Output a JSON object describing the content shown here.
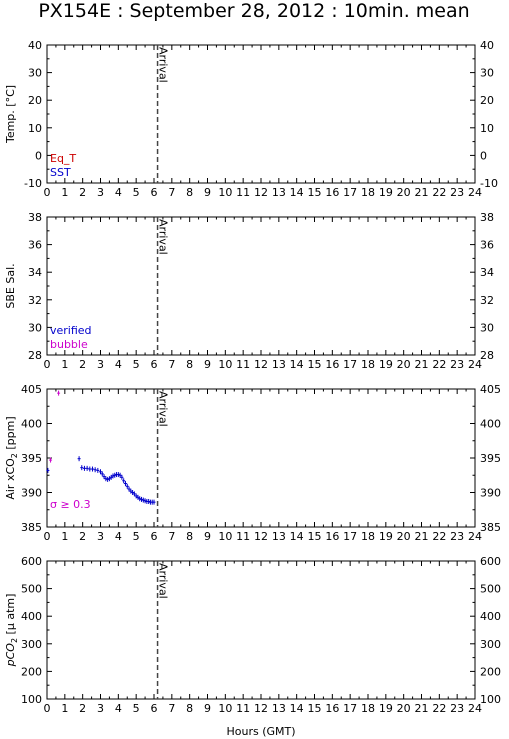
{
  "title": "PX154E : September 28, 2012 : 10min. mean",
  "xlabel": "Hours (GMT)",
  "colors": {
    "eq_t": "#cc0000",
    "sst": "#0000cc",
    "verified": "#0000cc",
    "bubble": "#cc00cc",
    "sigma": "#cc00cc",
    "arrival_line": "#444444"
  },
  "chart_data": [
    {
      "type": "scatter",
      "ylabel": "Temp. [°C]",
      "xlim": [
        0,
        24
      ],
      "ylim": [
        -10,
        40
      ],
      "yticks": [
        -10,
        0,
        10,
        20,
        30,
        40
      ],
      "xticks": [
        0,
        1,
        2,
        3,
        4,
        5,
        6,
        7,
        8,
        9,
        10,
        11,
        12,
        13,
        14,
        15,
        16,
        17,
        18,
        19,
        20,
        21,
        22,
        23,
        24
      ],
      "annotation": {
        "text": "Arrival",
        "x": 6.2
      },
      "legend": [
        {
          "name": "Eq_T",
          "color": "#cc0000"
        },
        {
          "name": "SST",
          "color": "#0000cc"
        }
      ],
      "series": []
    },
    {
      "type": "scatter",
      "ylabel": "SBE Sal.",
      "xlim": [
        0,
        24
      ],
      "ylim": [
        28,
        38
      ],
      "yticks": [
        28,
        30,
        32,
        34,
        36,
        38
      ],
      "xticks": [
        0,
        1,
        2,
        3,
        4,
        5,
        6,
        7,
        8,
        9,
        10,
        11,
        12,
        13,
        14,
        15,
        16,
        17,
        18,
        19,
        20,
        21,
        22,
        23,
        24
      ],
      "annotation": {
        "text": "Arrival",
        "x": 6.2
      },
      "legend": [
        {
          "name": "verified",
          "color": "#0000cc"
        },
        {
          "name": "bubble",
          "color": "#cc00cc"
        }
      ],
      "series": []
    },
    {
      "type": "scatter",
      "ylabel_main": "Air xCO",
      "ylabel_sub": "2",
      "ylabel_unit": " [ppm]",
      "xlim": [
        0,
        24
      ],
      "ylim": [
        385,
        405
      ],
      "yticks": [
        385,
        390,
        395,
        400,
        405
      ],
      "xticks": [
        0,
        1,
        2,
        3,
        4,
        5,
        6,
        7,
        8,
        9,
        10,
        11,
        12,
        13,
        14,
        15,
        16,
        17,
        18,
        19,
        20,
        21,
        22,
        23,
        24
      ],
      "annotation": {
        "text": "Arrival",
        "x": 6.2
      },
      "sigma_label": "σ ≥ 0.3",
      "series": [
        {
          "color": "#0000cc",
          "x": [
            0.05,
            1.8,
            1.95,
            2.1,
            2.25,
            2.4,
            2.55,
            2.7,
            2.85,
            3.0,
            3.1,
            3.2,
            3.3,
            3.4,
            3.5,
            3.6,
            3.7,
            3.8,
            3.9,
            4.0,
            4.1,
            4.2,
            4.3,
            4.4,
            4.5,
            4.6,
            4.7,
            4.8,
            4.9,
            5.0,
            5.1,
            5.2,
            5.3,
            5.4,
            5.5,
            5.6,
            5.7,
            5.8,
            5.9,
            6.0
          ],
          "y": [
            393.2,
            394.9,
            393.6,
            393.5,
            393.5,
            393.4,
            393.4,
            393.3,
            393.2,
            393.0,
            392.7,
            392.3,
            392.0,
            391.9,
            392.0,
            392.2,
            392.4,
            392.5,
            392.6,
            392.6,
            392.5,
            392.2,
            391.7,
            391.3,
            390.9,
            390.5,
            390.2,
            390.0,
            389.8,
            389.5,
            389.3,
            389.1,
            389.0,
            388.9,
            388.8,
            388.7,
            388.7,
            388.6,
            388.6,
            388.6
          ]
        },
        {
          "color": "#cc00cc",
          "x": [
            0.2,
            0.65
          ],
          "y": [
            394.7,
            404.4
          ]
        }
      ]
    },
    {
      "type": "scatter",
      "ylabel_main": "pCO",
      "ylabel_sub": "2",
      "ylabel_unit": " [μ atm]",
      "xlim": [
        0,
        24
      ],
      "ylim": [
        100,
        600
      ],
      "yticks": [
        100,
        200,
        300,
        400,
        500,
        600
      ],
      "xticks": [
        0,
        1,
        2,
        3,
        4,
        5,
        6,
        7,
        8,
        9,
        10,
        11,
        12,
        13,
        14,
        15,
        16,
        17,
        18,
        19,
        20,
        21,
        22,
        23,
        24
      ],
      "annotation": {
        "text": "Arrival",
        "x": 6.2
      },
      "series": []
    }
  ]
}
